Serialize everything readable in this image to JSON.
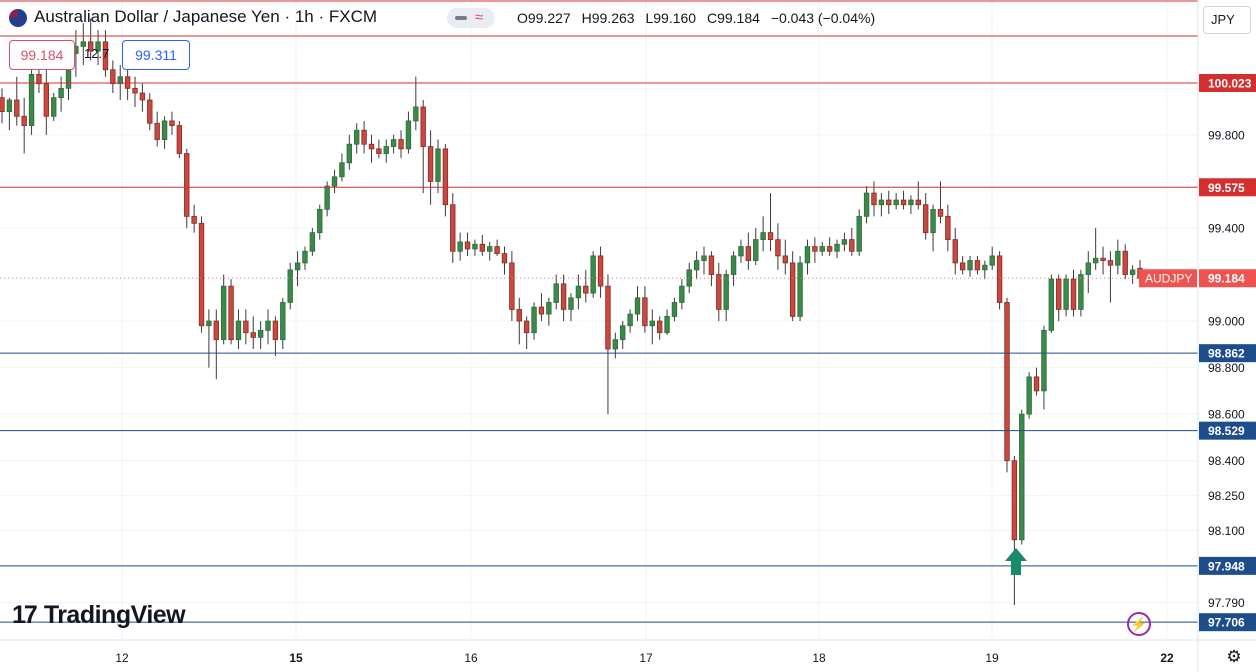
{
  "header": {
    "title": "Australian Dollar / Japanese Yen · 1h · FXCM",
    "ohlc": [
      {
        "label": "O",
        "value": "99.227"
      },
      {
        "label": "H",
        "value": "99.263"
      },
      {
        "label": "L",
        "value": "99.160"
      },
      {
        "label": "C",
        "value": "99.184"
      },
      {
        "label": "",
        "value": "−0.043 (−0.04%)"
      }
    ],
    "sell_price": "99.184",
    "spread": "12.7",
    "buy_price": "99.311",
    "currency_button": "JPY"
  },
  "logo_text": "TradingView",
  "colors": {
    "up": "#26a69a",
    "down": "#ef5350",
    "up_fill": "#3b8a4a",
    "down_fill": "#c9483f",
    "resistance": "#d32f2f",
    "support": "#1e4d8c",
    "arrow": "#1b8a6b"
  },
  "chart_data": {
    "type": "candlestick",
    "symbol_label": "AUDJPY",
    "last_price": 99.184,
    "ylim": [
      97.7,
      100.1
    ],
    "price_ticks": [
      "100.023",
      "99.800",
      "99.575",
      "99.400",
      "99.184",
      "99.000",
      "98.862",
      "98.800",
      "98.600",
      "98.529",
      "98.400",
      "98.250",
      "98.100",
      "97.948",
      "97.790",
      "97.706"
    ],
    "x_ticks": [
      "12",
      "15",
      "16",
      "17",
      "18",
      "19",
      "22"
    ],
    "resistance_levels": [
      100.023,
      99.575
    ],
    "support_levels": [
      98.862,
      98.529,
      97.948,
      97.706
    ],
    "arrow_annotation": {
      "type": "up-arrow",
      "near_price": 98.0
    },
    "candles": [
      [
        99.96,
        100.0,
        99.85,
        99.9
      ],
      [
        99.9,
        99.96,
        99.82,
        99.95
      ],
      [
        99.95,
        100.05,
        99.84,
        99.88
      ],
      [
        99.88,
        99.96,
        99.72,
        99.84
      ],
      [
        99.84,
        100.08,
        99.8,
        100.06
      ],
      [
        100.06,
        100.12,
        99.98,
        100.02
      ],
      [
        100.02,
        100.1,
        99.8,
        99.88
      ],
      [
        99.88,
        99.98,
        99.86,
        99.96
      ],
      [
        99.96,
        100.05,
        99.9,
        100.0
      ],
      [
        100.0,
        100.2,
        99.95,
        100.15
      ],
      [
        100.15,
        100.25,
        100.05,
        100.18
      ],
      [
        100.18,
        100.28,
        100.1,
        100.2
      ],
      [
        100.2,
        100.3,
        100.12,
        100.16
      ],
      [
        100.16,
        100.25,
        100.1,
        100.2
      ],
      [
        100.2,
        100.25,
        100.05,
        100.08
      ],
      [
        100.08,
        100.12,
        99.98,
        100.02
      ],
      [
        100.02,
        100.1,
        99.95,
        100.05
      ],
      [
        100.05,
        100.08,
        99.95,
        100.0
      ],
      [
        100.0,
        100.05,
        99.92,
        99.98
      ],
      [
        99.98,
        100.02,
        99.9,
        99.95
      ],
      [
        99.95,
        99.98,
        99.82,
        99.85
      ],
      [
        99.85,
        99.9,
        99.75,
        99.78
      ],
      [
        99.78,
        99.88,
        99.74,
        99.86
      ],
      [
        99.86,
        99.9,
        99.8,
        99.84
      ],
      [
        99.84,
        99.86,
        99.7,
        99.72
      ],
      [
        99.72,
        99.74,
        99.4,
        99.45
      ],
      [
        99.45,
        99.5,
        99.38,
        99.42
      ],
      [
        99.42,
        99.45,
        98.95,
        98.98
      ],
      [
        98.98,
        99.05,
        98.8,
        99.0
      ],
      [
        99.0,
        99.05,
        98.75,
        98.92
      ],
      [
        98.92,
        99.2,
        98.9,
        99.15
      ],
      [
        99.15,
        99.18,
        98.9,
        98.92
      ],
      [
        98.92,
        99.05,
        98.88,
        99.0
      ],
      [
        99.0,
        99.05,
        98.9,
        98.95
      ],
      [
        98.95,
        99.02,
        98.88,
        98.93
      ],
      [
        98.93,
        99.0,
        98.88,
        98.96
      ],
      [
        98.96,
        99.05,
        98.9,
        99.0
      ],
      [
        99.0,
        99.02,
        98.85,
        98.92
      ],
      [
        98.92,
        99.1,
        98.88,
        99.08
      ],
      [
        99.08,
        99.25,
        99.05,
        99.22
      ],
      [
        99.22,
        99.3,
        99.15,
        99.25
      ],
      [
        99.25,
        99.32,
        99.22,
        99.3
      ],
      [
        99.3,
        99.4,
        99.28,
        99.38
      ],
      [
        99.38,
        99.5,
        99.35,
        99.48
      ],
      [
        99.48,
        99.6,
        99.45,
        99.58
      ],
      [
        99.58,
        99.65,
        99.55,
        99.62
      ],
      [
        99.62,
        99.72,
        99.6,
        99.68
      ],
      [
        99.68,
        99.8,
        99.65,
        99.76
      ],
      [
        99.76,
        99.85,
        99.72,
        99.82
      ],
      [
        99.82,
        99.86,
        99.72,
        99.76
      ],
      [
        99.76,
        99.8,
        99.68,
        99.74
      ],
      [
        99.74,
        99.78,
        99.7,
        99.72
      ],
      [
        99.72,
        99.78,
        99.68,
        99.75
      ],
      [
        99.75,
        99.8,
        99.72,
        99.78
      ],
      [
        99.78,
        99.82,
        99.7,
        99.74
      ],
      [
        99.74,
        99.9,
        99.72,
        99.86
      ],
      [
        99.86,
        100.05,
        99.82,
        99.92
      ],
      [
        99.92,
        99.95,
        99.55,
        99.75
      ],
      [
        99.75,
        99.82,
        99.5,
        99.6
      ],
      [
        99.6,
        99.78,
        99.55,
        99.74
      ],
      [
        99.74,
        99.76,
        99.45,
        99.5
      ],
      [
        99.5,
        99.55,
        99.25,
        99.3
      ],
      [
        99.3,
        99.38,
        99.26,
        99.34
      ],
      [
        99.34,
        99.38,
        99.28,
        99.31
      ],
      [
        99.31,
        99.35,
        99.28,
        99.33
      ],
      [
        99.33,
        99.37,
        99.28,
        99.3
      ],
      [
        99.3,
        99.34,
        99.26,
        99.32
      ],
      [
        99.32,
        99.35,
        99.28,
        99.29
      ],
      [
        99.29,
        99.32,
        99.2,
        99.25
      ],
      [
        99.25,
        99.3,
        99.0,
        99.05
      ],
      [
        99.05,
        99.1,
        98.9,
        99.0
      ],
      [
        99.0,
        99.02,
        98.88,
        98.95
      ],
      [
        98.95,
        99.08,
        98.92,
        99.06
      ],
      [
        99.06,
        99.12,
        99.0,
        99.03
      ],
      [
        99.03,
        99.1,
        98.98,
        99.08
      ],
      [
        99.08,
        99.2,
        99.05,
        99.16
      ],
      [
        99.16,
        99.2,
        99.0,
        99.05
      ],
      [
        99.05,
        99.12,
        99.0,
        99.1
      ],
      [
        99.1,
        99.2,
        99.05,
        99.15
      ],
      [
        99.15,
        99.22,
        99.08,
        99.12
      ],
      [
        99.12,
        99.3,
        99.1,
        99.28
      ],
      [
        99.28,
        99.32,
        99.1,
        99.15
      ],
      [
        99.15,
        99.2,
        98.6,
        98.88
      ],
      [
        98.88,
        98.95,
        98.84,
        98.92
      ],
      [
        98.92,
        99.0,
        98.88,
        98.98
      ],
      [
        98.98,
        99.05,
        98.95,
        99.03
      ],
      [
        99.03,
        99.15,
        99.0,
        99.1
      ],
      [
        99.1,
        99.15,
        98.95,
        98.98
      ],
      [
        98.98,
        99.05,
        98.9,
        99.0
      ],
      [
        99.0,
        99.02,
        98.92,
        98.95
      ],
      [
        98.95,
        99.05,
        98.94,
        99.02
      ],
      [
        99.02,
        99.1,
        99.0,
        99.08
      ],
      [
        99.08,
        99.18,
        99.05,
        99.15
      ],
      [
        99.15,
        99.25,
        99.12,
        99.22
      ],
      [
        99.22,
        99.3,
        99.18,
        99.26
      ],
      [
        99.26,
        99.32,
        99.2,
        99.28
      ],
      [
        99.28,
        99.3,
        99.15,
        99.2
      ],
      [
        99.2,
        99.25,
        99.0,
        99.05
      ],
      [
        99.05,
        99.22,
        99.0,
        99.2
      ],
      [
        99.2,
        99.3,
        99.15,
        99.28
      ],
      [
        99.28,
        99.35,
        99.25,
        99.32
      ],
      [
        99.32,
        99.38,
        99.22,
        99.26
      ],
      [
        99.26,
        99.4,
        99.24,
        99.35
      ],
      [
        99.35,
        99.45,
        99.3,
        99.38
      ],
      [
        99.38,
        99.55,
        99.3,
        99.35
      ],
      [
        99.35,
        99.42,
        99.22,
        99.28
      ],
      [
        99.28,
        99.35,
        99.2,
        99.25
      ],
      [
        99.25,
        99.3,
        99.0,
        99.02
      ],
      [
        99.02,
        99.28,
        99.0,
        99.25
      ],
      [
        99.25,
        99.35,
        99.2,
        99.32
      ],
      [
        99.32,
        99.36,
        99.25,
        99.3
      ],
      [
        99.3,
        99.34,
        99.28,
        99.32
      ],
      [
        99.32,
        99.36,
        99.28,
        99.3
      ],
      [
        99.3,
        99.35,
        99.27,
        99.33
      ],
      [
        99.33,
        99.38,
        99.3,
        99.35
      ],
      [
        99.35,
        99.4,
        99.28,
        99.3
      ],
      [
        99.3,
        99.48,
        99.28,
        99.45
      ],
      [
        99.45,
        99.58,
        99.42,
        99.55
      ],
      [
        99.55,
        99.6,
        99.45,
        99.5
      ],
      [
        99.5,
        99.55,
        99.45,
        99.52
      ],
      [
        99.52,
        99.56,
        99.46,
        99.5
      ],
      [
        99.5,
        99.55,
        99.48,
        99.52
      ],
      [
        99.52,
        99.56,
        99.48,
        99.5
      ],
      [
        99.5,
        99.54,
        99.46,
        99.52
      ],
      [
        99.52,
        99.6,
        99.48,
        99.5
      ],
      [
        99.5,
        99.55,
        99.35,
        99.38
      ],
      [
        99.38,
        99.5,
        99.3,
        99.48
      ],
      [
        99.48,
        99.6,
        99.42,
        99.45
      ],
      [
        99.45,
        99.5,
        99.3,
        99.35
      ],
      [
        99.35,
        99.4,
        99.2,
        99.25
      ],
      [
        99.25,
        99.28,
        99.2,
        99.22
      ],
      [
        99.22,
        99.28,
        99.19,
        99.26
      ],
      [
        99.26,
        99.28,
        99.2,
        99.22
      ],
      [
        99.22,
        99.26,
        99.18,
        99.24
      ],
      [
        99.24,
        99.32,
        99.22,
        99.28
      ],
      [
        99.28,
        99.3,
        99.05,
        99.08
      ],
      [
        99.08,
        99.1,
        98.35,
        98.4
      ],
      [
        98.4,
        98.42,
        97.78,
        98.06
      ],
      [
        98.06,
        98.62,
        98.04,
        98.6
      ],
      [
        98.6,
        98.78,
        98.58,
        98.76
      ],
      [
        98.76,
        98.8,
        98.68,
        98.7
      ],
      [
        98.7,
        98.98,
        98.62,
        98.96
      ],
      [
        98.96,
        99.2,
        98.95,
        99.18
      ],
      [
        99.18,
        99.2,
        99.0,
        99.05
      ],
      [
        99.05,
        99.2,
        99.02,
        99.18
      ],
      [
        99.18,
        99.22,
        99.02,
        99.05
      ],
      [
        99.05,
        99.22,
        99.02,
        99.2
      ],
      [
        99.2,
        99.3,
        99.12,
        99.25
      ],
      [
        99.25,
        99.4,
        99.22,
        99.27
      ],
      [
        99.27,
        99.32,
        99.2,
        99.26
      ],
      [
        99.26,
        99.3,
        99.08,
        99.24
      ],
      [
        99.24,
        99.35,
        99.2,
        99.3
      ],
      [
        99.3,
        99.33,
        99.18,
        99.2
      ],
      [
        99.2,
        99.24,
        99.16,
        99.22
      ],
      [
        99.227,
        99.263,
        99.16,
        99.184
      ]
    ]
  }
}
